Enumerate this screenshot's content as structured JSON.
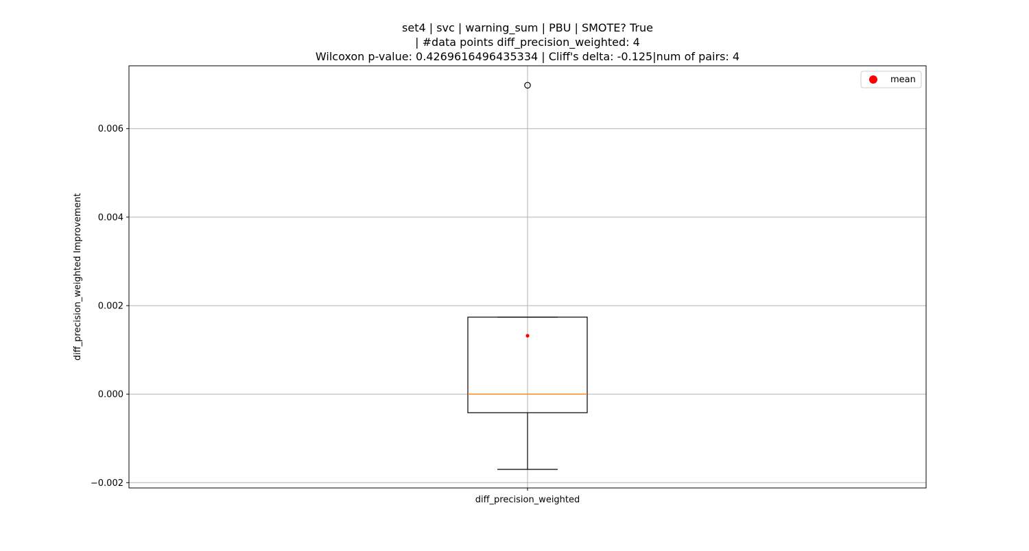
{
  "chart_data": {
    "type": "box",
    "title_lines": [
      "set4 | svc | warning_sum | PBU | SMOTE? True",
      "| #data points diff_precision_weighted: 4",
      "Wilcoxon p-value: 0.4269616496435334 | Cliff's delta: -0.125|num of pairs: 4"
    ],
    "xlabel": "",
    "ylabel": "diff_precision_weighted Improvement",
    "categories": [
      "diff_precision_weighted"
    ],
    "ylim": [
      -0.00212,
      0.00742
    ],
    "yticks": [
      -0.002,
      0.0,
      0.002,
      0.004,
      0.006
    ],
    "ytick_labels": [
      "−0.002",
      "0.000",
      "0.002",
      "0.004",
      "0.006"
    ],
    "grid": true,
    "box": {
      "whisker_low": -0.0017,
      "q1": -0.00042,
      "median": 0.0,
      "q3": 0.00174,
      "whisker_high": 0.00174,
      "mean": 0.00132,
      "outliers": [
        0.00698
      ]
    },
    "legend": {
      "placement": "top-right",
      "entries": [
        {
          "label": "mean",
          "color": "#ff0000"
        }
      ]
    },
    "colors": {
      "median": "#ff7f0e",
      "mean": "#ff0000",
      "box": "#000000",
      "grid": "#b0b0b0"
    }
  }
}
